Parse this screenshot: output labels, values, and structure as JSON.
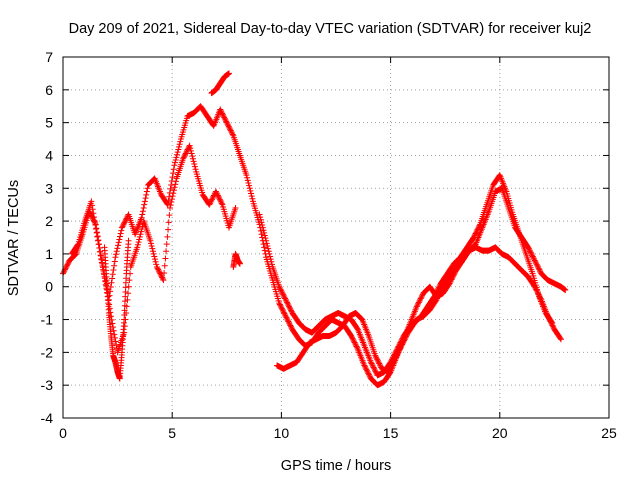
{
  "chart_data": {
    "type": "scatter",
    "title": "Day 209 of 2021, Sidereal Day-to-day VTEC variation (SDTVAR) for receiver kuj2",
    "xlabel": "GPS time / hours",
    "ylabel": "SDTVAR / TECUs",
    "xlim": [
      0,
      25
    ],
    "ylim": [
      -4,
      7
    ],
    "xticks": [
      0,
      5,
      10,
      15,
      20,
      25
    ],
    "yticks": [
      -4,
      -3,
      -2,
      -1,
      0,
      1,
      2,
      3,
      4,
      5,
      6,
      7
    ],
    "grid": true,
    "marker": "+",
    "series": [
      {
        "name": "kuj2",
        "color": "#ff0000",
        "tracks": [
          {
            "x": [
              0.0,
              0.3,
              0.6,
              0.9,
              1.2,
              1.5,
              1.8,
              2.1,
              2.4,
              2.7,
              3.0,
              3.3,
              3.6,
              3.9,
              4.2,
              4.5,
              4.8,
              5.1,
              5.4,
              5.7,
              6.0,
              6.3,
              6.6,
              6.9,
              7.2,
              7.5,
              7.8,
              8.1,
              8.4,
              8.7,
              9.0,
              9.3,
              9.6,
              9.9,
              10.2,
              10.5,
              10.8,
              11.1,
              11.4,
              11.7,
              12.0,
              12.3,
              12.6,
              12.9,
              13.2,
              13.5,
              13.8,
              14.1,
              14.4,
              14.7,
              15.0,
              15.3,
              15.6,
              15.9,
              16.2,
              16.5,
              16.8,
              17.1,
              17.4,
              17.7,
              18.0,
              18.3,
              18.6,
              18.9,
              19.2,
              19.5,
              19.8,
              20.1,
              20.4,
              20.7,
              21.0,
              21.3,
              21.6,
              21.9,
              22.2,
              22.5,
              22.8,
              23.0
            ],
            "y": [
              0.4,
              0.8,
              1.0,
              1.6,
              2.3,
              1.9,
              0.7,
              -0.4,
              0.9,
              1.8,
              2.2,
              1.6,
              2.1,
              3.1,
              3.3,
              2.8,
              2.5,
              3.7,
              4.5,
              5.2,
              5.3,
              5.5,
              5.2,
              4.9,
              5.4,
              5.0,
              4.6,
              4.0,
              3.4,
              2.6,
              1.9,
              0.9,
              0.2,
              -0.5,
              -0.9,
              -1.3,
              -1.6,
              -1.8,
              -1.7,
              -1.4,
              -1.2,
              -1.0,
              -1.1,
              -1.2,
              -1.5,
              -1.9,
              -2.4,
              -2.8,
              -3.0,
              -2.9,
              -2.6,
              -2.1,
              -1.6,
              -1.1,
              -0.6,
              -0.2,
              0.0,
              -0.3,
              -0.2,
              0.1,
              0.5,
              0.8,
              1.1,
              1.3,
              1.8,
              2.3,
              2.9,
              3.0,
              2.4,
              1.8,
              1.5,
              1.2,
              0.8,
              0.4,
              0.2,
              0.1,
              0.0,
              -0.1
            ]
          },
          {
            "x": [
              9.0,
              9.3,
              9.6,
              9.9,
              10.2,
              10.5,
              10.8,
              11.1,
              11.4,
              11.7,
              12.0,
              12.3,
              12.6,
              12.9,
              13.2,
              13.5,
              13.8,
              14.1,
              14.4,
              14.7,
              15.0,
              15.3,
              15.6,
              15.9,
              16.2,
              16.5,
              16.8,
              17.1,
              17.4,
              17.7,
              18.0,
              18.3,
              18.6,
              18.9,
              19.2,
              19.5,
              19.8,
              20.1,
              20.4,
              20.7,
              21.0,
              21.3,
              21.6,
              21.9,
              22.2,
              22.5,
              22.8
            ],
            "y": [
              2.2,
              1.4,
              0.6,
              0.0,
              -0.4,
              -0.8,
              -1.1,
              -1.3,
              -1.4,
              -1.2,
              -1.0,
              -0.9,
              -0.8,
              -0.9,
              -1.0,
              -1.3,
              -1.8,
              -2.3,
              -2.7,
              -2.6,
              -2.3,
              -1.9,
              -1.5,
              -1.2,
              -1.0,
              -0.9,
              -0.7,
              -0.4,
              0.0,
              0.3,
              0.6,
              0.9,
              1.1,
              1.2,
              1.1,
              1.1,
              1.2,
              1.0,
              0.9,
              0.7,
              0.5,
              0.3,
              0.0,
              -0.4,
              -0.9,
              -1.3,
              -1.6
            ]
          },
          {
            "x": [
              9.8,
              10.1,
              10.4,
              10.7,
              11.0,
              11.3,
              11.6,
              11.9,
              12.2,
              12.5,
              12.8,
              13.1,
              13.4,
              13.7,
              14.0,
              14.3,
              14.6,
              14.9,
              15.2,
              15.5,
              15.8,
              16.1,
              16.4,
              16.7,
              17.0,
              17.3,
              17.6,
              17.9,
              18.2,
              18.5,
              18.8,
              19.1,
              19.4,
              19.7,
              20.0,
              20.3,
              20.6,
              20.9,
              21.2,
              21.5,
              21.8,
              22.1,
              22.4
            ],
            "y": [
              -2.4,
              -2.5,
              -2.4,
              -2.3,
              -2.0,
              -1.7,
              -1.6,
              -1.5,
              -1.5,
              -1.4,
              -1.2,
              -0.9,
              -0.8,
              -1.0,
              -1.5,
              -2.1,
              -2.5,
              -2.6,
              -2.2,
              -1.8,
              -1.4,
              -1.1,
              -0.9,
              -0.6,
              -0.3,
              0.1,
              0.4,
              0.7,
              0.9,
              1.2,
              1.5,
              1.9,
              2.5,
              3.1,
              3.4,
              2.9,
              2.2,
              1.6,
              1.0,
              0.4,
              -0.3,
              -0.8,
              -1.1
            ]
          },
          {
            "x": [
              0.4,
              0.7,
              1.0,
              1.3,
              1.6,
              1.9,
              2.2,
              2.5,
              2.8,
              3.1,
              3.4,
              3.7,
              4.0,
              4.3,
              4.6,
              4.9,
              5.2,
              5.5,
              5.8,
              6.1,
              6.4,
              6.7,
              7.0,
              7.3,
              7.6,
              7.9
            ],
            "y": [
              1.0,
              1.3,
              2.0,
              2.6,
              1.4,
              0.3,
              -0.9,
              -2.0,
              -1.4,
              0.6,
              1.2,
              2.0,
              1.4,
              0.6,
              0.2,
              2.4,
              3.3,
              3.9,
              4.3,
              3.5,
              2.8,
              2.5,
              2.9,
              2.5,
              1.8,
              2.4
            ]
          },
          {
            "x": [
              1.9,
              2.0,
              2.1,
              2.2,
              2.3,
              2.4,
              2.5,
              2.6,
              2.7,
              2.8,
              2.9,
              3.0
            ],
            "y": [
              1.2,
              0.2,
              -0.8,
              -1.5,
              -2.1,
              -2.3,
              -2.6,
              -2.8,
              -2.0,
              -1.0,
              0.4,
              1.4
            ]
          },
          {
            "x": [
              7.8,
              7.9,
              8.0,
              8.1
            ],
            "y": [
              0.6,
              1.0,
              0.8,
              0.7
            ]
          },
          {
            "x": [
              6.8,
              7.0,
              7.2,
              7.4,
              7.6
            ],
            "y": [
              5.9,
              6.0,
              6.2,
              6.4,
              6.5
            ]
          }
        ]
      }
    ]
  }
}
